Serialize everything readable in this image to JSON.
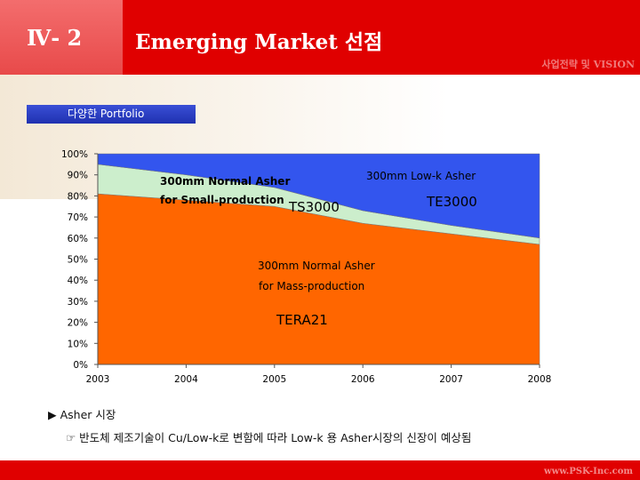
{
  "header": {
    "section": "Ⅳ- 2",
    "title": "Emerging Market 선점",
    "subtitle": "사업전략 및 VISION"
  },
  "tag": {
    "label": "다양한 Portfolio"
  },
  "notes": {
    "bullet": "▶ Asher 시장",
    "detail": "☞ 반도체 제조기술이 Cu/Low-k로 변함에 따라 Low-k 용 Asher시장의 신장이 예상됨"
  },
  "footer": {
    "text": "www.PSK-Inc.com"
  },
  "chart_data": {
    "type": "area",
    "stacked": true,
    "x": [
      "2003",
      "2004",
      "2005",
      "2006",
      "2007",
      "2008"
    ],
    "y_ticks": [
      "0%",
      "10%",
      "20%",
      "30%",
      "40%",
      "50%",
      "60%",
      "70%",
      "80%",
      "90%",
      "100%"
    ],
    "ylim": [
      0,
      100
    ],
    "series": [
      {
        "name": "300mm Normal Asher for Mass-production",
        "values": [
          81,
          78,
          75,
          67,
          62,
          57
        ],
        "color": "#ff6600"
      },
      {
        "name": "300mm Normal Asher for Small-production",
        "values": [
          14,
          12,
          9,
          6,
          4,
          3
        ],
        "color": "#cceecc"
      },
      {
        "name": "300mm Low-k Asher",
        "values": [
          5,
          10,
          16,
          27,
          34,
          40
        ],
        "color": "#3355ee"
      }
    ],
    "annotations": {
      "small_l1": "300mm Normal Asher",
      "small_l2": "for Small-production",
      "lowk": "300mm Low-k Asher",
      "ts": "TS3000",
      "te": "TE3000",
      "mass_l1": "300mm Normal Asher",
      "mass_l2": "for Mass-production",
      "tera": "TERA21"
    }
  }
}
